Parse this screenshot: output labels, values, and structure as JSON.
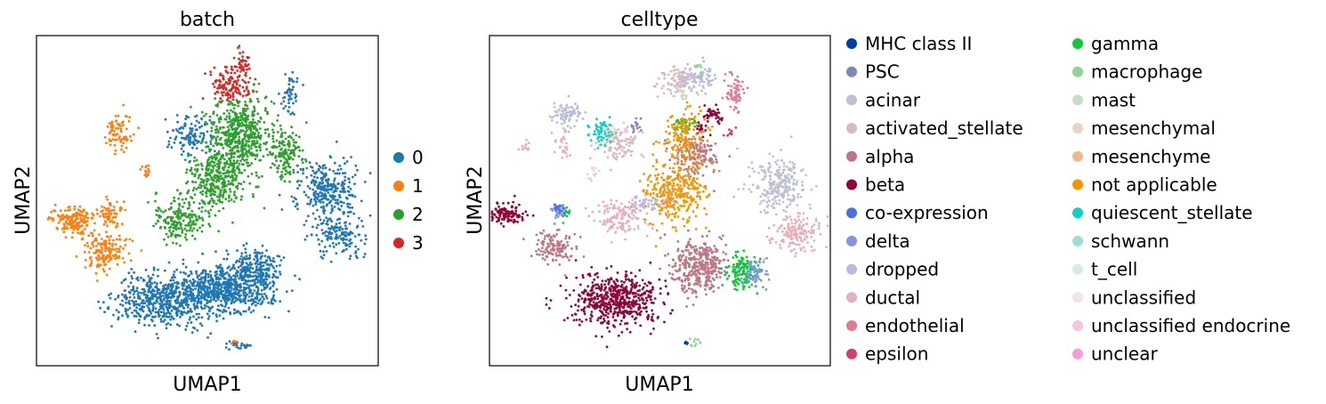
{
  "figure": {
    "panels": [
      {
        "title": "batch",
        "xlabel": "UMAP1",
        "ylabel": "UMAP2"
      },
      {
        "title": "celltype",
        "xlabel": "UMAP1",
        "ylabel": "UMAP2"
      }
    ]
  },
  "chart_data": [
    {
      "type": "scatter",
      "title": "batch",
      "xlabel": "UMAP1",
      "ylabel": "UMAP2",
      "ticks": "none",
      "grid": false,
      "legend_placement": "right",
      "legend": [
        {
          "label": "0",
          "color": "#1f77b4"
        },
        {
          "label": "1",
          "color": "#ff7f0e"
        },
        {
          "label": "2",
          "color": "#2ca02c"
        },
        {
          "label": "3",
          "color": "#d62728"
        }
      ],
      "clusters": [
        {
          "label": "0",
          "x": 0.55,
          "y": 0.23,
          "sx": 0.07,
          "sy": 0.035,
          "n": 650
        },
        {
          "label": "0",
          "x": 0.37,
          "y": 0.2,
          "sx": 0.065,
          "sy": 0.04,
          "n": 550
        },
        {
          "label": "0",
          "x": 0.64,
          "y": 0.3,
          "sx": 0.035,
          "sy": 0.03,
          "n": 200
        },
        {
          "label": "0",
          "x": 0.85,
          "y": 0.53,
          "sx": 0.045,
          "sy": 0.05,
          "n": 300
        },
        {
          "label": "0",
          "x": 0.89,
          "y": 0.4,
          "sx": 0.035,
          "sy": 0.03,
          "n": 150
        },
        {
          "label": "0",
          "x": 0.45,
          "y": 0.7,
          "sx": 0.03,
          "sy": 0.03,
          "n": 120
        },
        {
          "label": "0",
          "x": 0.74,
          "y": 0.82,
          "sx": 0.012,
          "sy": 0.03,
          "n": 50
        },
        {
          "label": "0",
          "x": 0.6,
          "y": 0.06,
          "sx": 0.02,
          "sy": 0.006,
          "n": 25
        },
        {
          "label": "1",
          "x": 0.11,
          "y": 0.44,
          "sx": 0.03,
          "sy": 0.02,
          "n": 160
        },
        {
          "label": "1",
          "x": 0.2,
          "y": 0.35,
          "sx": 0.035,
          "sy": 0.03,
          "n": 160
        },
        {
          "label": "1",
          "x": 0.22,
          "y": 0.46,
          "sx": 0.02,
          "sy": 0.02,
          "n": 60
        },
        {
          "label": "1",
          "x": 0.24,
          "y": 0.71,
          "sx": 0.02,
          "sy": 0.03,
          "n": 80
        },
        {
          "label": "1",
          "x": 0.32,
          "y": 0.59,
          "sx": 0.008,
          "sy": 0.01,
          "n": 15
        },
        {
          "label": "1",
          "x": 0.58,
          "y": 0.07,
          "sx": 0.005,
          "sy": 0.005,
          "n": 5
        },
        {
          "label": "2",
          "x": 0.59,
          "y": 0.7,
          "sx": 0.045,
          "sy": 0.06,
          "n": 550
        },
        {
          "label": "2",
          "x": 0.53,
          "y": 0.56,
          "sx": 0.04,
          "sy": 0.045,
          "n": 300
        },
        {
          "label": "2",
          "x": 0.42,
          "y": 0.45,
          "sx": 0.04,
          "sy": 0.035,
          "n": 200
        },
        {
          "label": "2",
          "x": 0.73,
          "y": 0.64,
          "sx": 0.025,
          "sy": 0.04,
          "n": 150
        },
        {
          "label": "3",
          "x": 0.57,
          "y": 0.85,
          "sx": 0.03,
          "sy": 0.025,
          "n": 120
        },
        {
          "label": "3",
          "x": 0.6,
          "y": 0.92,
          "sx": 0.012,
          "sy": 0.02,
          "n": 40
        }
      ]
    },
    {
      "type": "scatter",
      "title": "celltype",
      "xlabel": "UMAP1",
      "ylabel": "UMAP2",
      "ticks": "none",
      "grid": false,
      "legend_placement": "right",
      "legend": [
        {
          "label": "MHC class II",
          "color": "#023fa5"
        },
        {
          "label": "PSC",
          "color": "#7d87b9"
        },
        {
          "label": "acinar",
          "color": "#bec1d4"
        },
        {
          "label": "activated_stellate",
          "color": "#d6bcc0"
        },
        {
          "label": "alpha",
          "color": "#bb7784"
        },
        {
          "label": "beta",
          "color": "#8e063b"
        },
        {
          "label": "co-expression",
          "color": "#4a6fe3"
        },
        {
          "label": "delta",
          "color": "#8595e1"
        },
        {
          "label": "dropped",
          "color": "#b5bbe3"
        },
        {
          "label": "ductal",
          "color": "#e6afb9"
        },
        {
          "label": "endothelial",
          "color": "#e07b91"
        },
        {
          "label": "epsilon",
          "color": "#d33f6a"
        },
        {
          "label": "gamma",
          "color": "#11c638"
        },
        {
          "label": "macrophage",
          "color": "#8dd593"
        },
        {
          "label": "mast",
          "color": "#c6dec7"
        },
        {
          "label": "mesenchymal",
          "color": "#ead3c6"
        },
        {
          "label": "mesenchyme",
          "color": "#f0b98d"
        },
        {
          "label": "not applicable",
          "color": "#ef9708"
        },
        {
          "label": "quiescent_stellate",
          "color": "#0fcfc0"
        },
        {
          "label": "schwann",
          "color": "#9cded6"
        },
        {
          "label": "t_cell",
          "color": "#d5eae7"
        },
        {
          "label": "unclassified",
          "color": "#f3e1eb"
        },
        {
          "label": "unclassified endocrine",
          "color": "#f6c4e1"
        },
        {
          "label": "unclear",
          "color": "#f79cd4"
        }
      ],
      "clusters": [
        {
          "label": "beta",
          "x": 0.37,
          "y": 0.2,
          "sx": 0.065,
          "sy": 0.04,
          "n": 550
        },
        {
          "label": "beta",
          "x": 0.05,
          "y": 0.46,
          "sx": 0.03,
          "sy": 0.015,
          "n": 120
        },
        {
          "label": "beta",
          "x": 0.66,
          "y": 0.76,
          "sx": 0.015,
          "sy": 0.015,
          "n": 40
        },
        {
          "label": "beta",
          "x": 0.62,
          "y": 0.72,
          "sx": 0.01,
          "sy": 0.012,
          "n": 20
        },
        {
          "label": "alpha",
          "x": 0.61,
          "y": 0.3,
          "sx": 0.04,
          "sy": 0.04,
          "n": 350
        },
        {
          "label": "alpha",
          "x": 0.19,
          "y": 0.36,
          "sx": 0.03,
          "sy": 0.025,
          "n": 130
        },
        {
          "label": "alpha",
          "x": 0.61,
          "y": 0.64,
          "sx": 0.035,
          "sy": 0.03,
          "n": 150
        },
        {
          "label": "gamma",
          "x": 0.74,
          "y": 0.29,
          "sx": 0.025,
          "sy": 0.03,
          "n": 130
        },
        {
          "label": "gamma",
          "x": 0.57,
          "y": 0.73,
          "sx": 0.02,
          "sy": 0.012,
          "n": 40
        },
        {
          "label": "gamma",
          "x": 0.22,
          "y": 0.46,
          "sx": 0.008,
          "sy": 0.01,
          "n": 15
        },
        {
          "label": "delta",
          "x": 0.78,
          "y": 0.28,
          "sx": 0.018,
          "sy": 0.02,
          "n": 60
        },
        {
          "label": "delta",
          "x": 0.2,
          "y": 0.47,
          "sx": 0.01,
          "sy": 0.012,
          "n": 25
        },
        {
          "label": "acinar",
          "x": 0.85,
          "y": 0.55,
          "sx": 0.04,
          "sy": 0.04,
          "n": 250
        },
        {
          "label": "acinar",
          "x": 0.22,
          "y": 0.76,
          "sx": 0.02,
          "sy": 0.02,
          "n": 60
        },
        {
          "label": "ductal",
          "x": 0.9,
          "y": 0.4,
          "sx": 0.035,
          "sy": 0.03,
          "n": 160
        },
        {
          "label": "ductal",
          "x": 0.38,
          "y": 0.45,
          "sx": 0.04,
          "sy": 0.03,
          "n": 140
        },
        {
          "label": "ductal",
          "x": 0.52,
          "y": 0.5,
          "sx": 0.015,
          "sy": 0.015,
          "n": 30
        },
        {
          "label": "ductal",
          "x": 0.21,
          "y": 0.67,
          "sx": 0.015,
          "sy": 0.02,
          "n": 25
        },
        {
          "label": "ductal",
          "x": 0.1,
          "y": 0.66,
          "sx": 0.01,
          "sy": 0.01,
          "n": 12
        },
        {
          "label": "not applicable",
          "x": 0.54,
          "y": 0.53,
          "sx": 0.045,
          "sy": 0.05,
          "n": 320
        },
        {
          "label": "not applicable",
          "x": 0.57,
          "y": 0.7,
          "sx": 0.03,
          "sy": 0.04,
          "n": 140
        },
        {
          "label": "activated_stellate",
          "x": 0.38,
          "y": 0.67,
          "sx": 0.03,
          "sy": 0.025,
          "n": 110
        },
        {
          "label": "activated_stellate",
          "x": 0.56,
          "y": 0.86,
          "sx": 0.03,
          "sy": 0.02,
          "n": 110
        },
        {
          "label": "quiescent_stellate",
          "x": 0.33,
          "y": 0.71,
          "sx": 0.015,
          "sy": 0.02,
          "n": 60
        },
        {
          "label": "endothelial",
          "x": 0.72,
          "y": 0.83,
          "sx": 0.012,
          "sy": 0.03,
          "n": 70
        },
        {
          "label": "dropped",
          "x": 0.62,
          "y": 0.87,
          "sx": 0.025,
          "sy": 0.02,
          "n": 60
        },
        {
          "label": "dropped",
          "x": 0.45,
          "y": 0.49,
          "sx": 0.02,
          "sy": 0.01,
          "n": 35
        },
        {
          "label": "dropped",
          "x": 0.24,
          "y": 0.77,
          "sx": 0.015,
          "sy": 0.015,
          "n": 30
        },
        {
          "label": "PSC",
          "x": 0.43,
          "y": 0.73,
          "sx": 0.008,
          "sy": 0.01,
          "n": 15
        },
        {
          "label": "co-expression",
          "x": 0.2,
          "y": 0.48,
          "sx": 0.008,
          "sy": 0.008,
          "n": 15
        },
        {
          "label": "macrophage",
          "x": 0.62,
          "y": 0.9,
          "sx": 0.005,
          "sy": 0.015,
          "n": 10
        },
        {
          "label": "macrophage",
          "x": 0.6,
          "y": 0.07,
          "sx": 0.015,
          "sy": 0.006,
          "n": 10
        },
        {
          "label": "MHC class II",
          "x": 0.58,
          "y": 0.07,
          "sx": 0.006,
          "sy": 0.004,
          "n": 6
        },
        {
          "label": "mesenchymal",
          "x": 0.3,
          "y": 0.58,
          "sx": 0.008,
          "sy": 0.01,
          "n": 12
        },
        {
          "label": "mesenchymal",
          "x": 0.36,
          "y": 0.71,
          "sx": 0.01,
          "sy": 0.01,
          "n": 10
        },
        {
          "label": "mast",
          "x": 0.56,
          "y": 0.82,
          "sx": 0.01,
          "sy": 0.01,
          "n": 10
        },
        {
          "label": "epsilon",
          "x": 0.7,
          "y": 0.71,
          "sx": 0.01,
          "sy": 0.01,
          "n": 8
        },
        {
          "label": "unclassified endocrine",
          "x": 0.4,
          "y": 0.72,
          "sx": 0.008,
          "sy": 0.008,
          "n": 6
        }
      ]
    }
  ]
}
